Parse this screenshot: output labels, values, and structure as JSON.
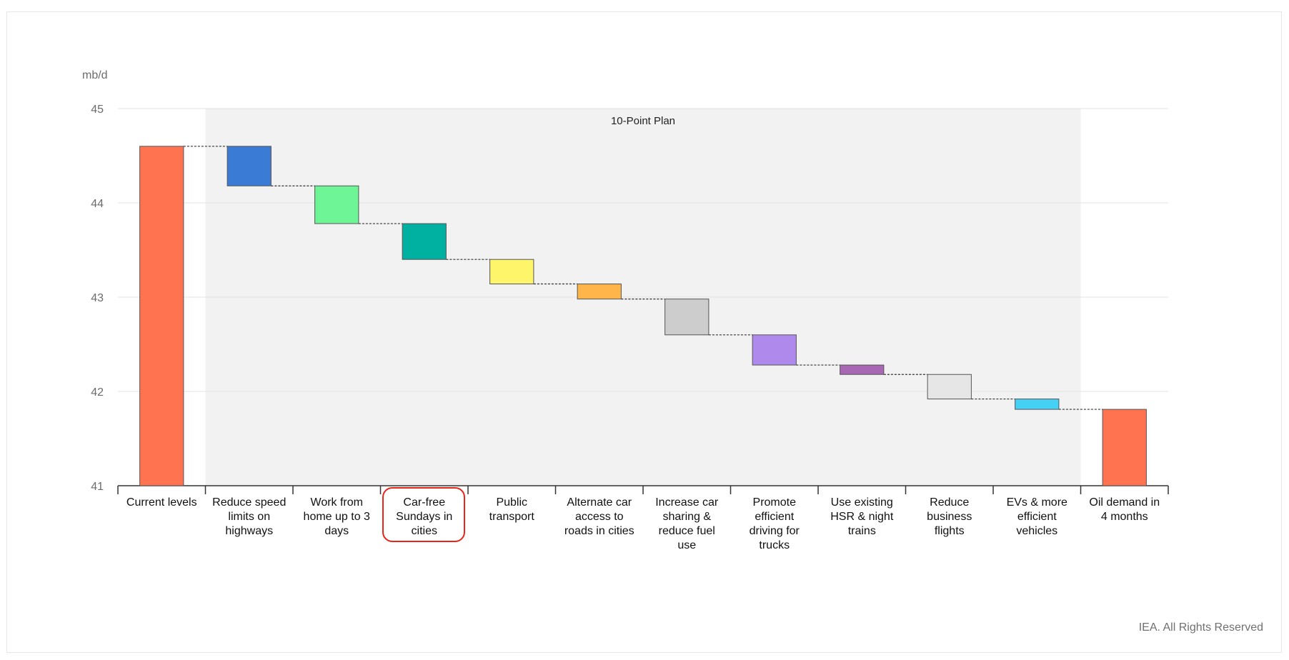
{
  "chart_data": {
    "type": "waterfall",
    "ylabel": "mb/d",
    "ylim": [
      41,
      45
    ],
    "yticks": [
      41,
      42,
      43,
      44,
      45
    ],
    "grid": true,
    "shaded_region": {
      "label": "10-Point Plan",
      "from_category": "Reduce speed limits on highways",
      "to_category": "EVs & more efficient vehicles"
    },
    "categories": [
      "Current levels",
      "Reduce speed limits on highways",
      "Work from home up to 3 days",
      "Car-free Sundays in cities",
      "Public transport",
      "Alternate car access to roads in cities",
      "Increase car sharing & reduce fuel use",
      "Promote efficient driving for trucks",
      "Use existing HSR & night trains",
      "Reduce business flights",
      "EVs & more efficient vehicles",
      "Oil demand in 4 months"
    ],
    "category_lines": [
      [
        "Current levels"
      ],
      [
        "Reduce speed",
        "limits on",
        "highways"
      ],
      [
        "Work from",
        "home up to 3",
        "days"
      ],
      [
        "Car-free",
        "Sundays in",
        "cities"
      ],
      [
        "Public",
        "transport"
      ],
      [
        "Alternate car",
        "access to",
        "roads in cities"
      ],
      [
        "Increase car",
        "sharing &",
        "reduce fuel",
        "use"
      ],
      [
        "Promote",
        "efficient",
        "driving for",
        "trucks"
      ],
      [
        "Use existing",
        "HSR & night",
        "trains"
      ],
      [
        "Reduce",
        "business",
        "flights"
      ],
      [
        "EVs & more",
        "efficient",
        "vehicles"
      ],
      [
        "Oil demand in",
        "4 months"
      ]
    ],
    "bars": [
      {
        "kind": "total",
        "start": 41,
        "end": 44.6,
        "color": "#ff7350"
      },
      {
        "kind": "delta",
        "start": 44.6,
        "end": 44.18,
        "color": "#3a7bd5"
      },
      {
        "kind": "delta",
        "start": 44.18,
        "end": 43.78,
        "color": "#6ef595"
      },
      {
        "kind": "delta",
        "start": 43.78,
        "end": 43.4,
        "color": "#00b0a1"
      },
      {
        "kind": "delta",
        "start": 43.4,
        "end": 43.14,
        "color": "#fff56b"
      },
      {
        "kind": "delta",
        "start": 43.14,
        "end": 42.98,
        "color": "#ffb54a"
      },
      {
        "kind": "delta",
        "start": 42.98,
        "end": 42.6,
        "color": "#cdcdcd"
      },
      {
        "kind": "delta",
        "start": 42.6,
        "end": 42.28,
        "color": "#b089ec"
      },
      {
        "kind": "delta",
        "start": 42.28,
        "end": 42.18,
        "color": "#a868b3"
      },
      {
        "kind": "delta",
        "start": 42.18,
        "end": 41.92,
        "color": "#e6e6e6"
      },
      {
        "kind": "delta",
        "start": 41.92,
        "end": 41.81,
        "color": "#45d1f5"
      },
      {
        "kind": "total",
        "start": 41,
        "end": 41.81,
        "color": "#ff7350"
      }
    ],
    "highlighted_category": "Car-free Sundays in cities"
  },
  "footer": "IEA. All Rights Reserved"
}
